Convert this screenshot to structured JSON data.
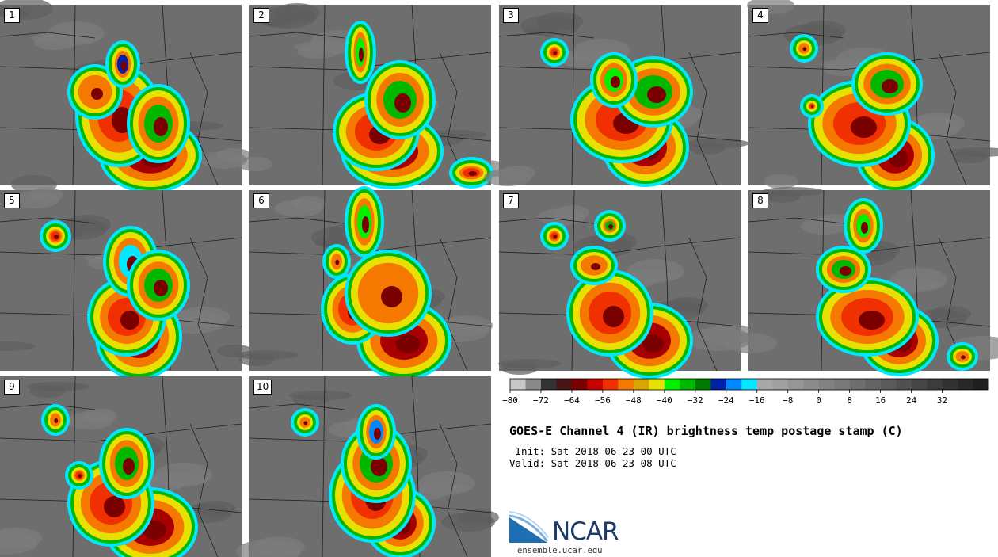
{
  "panels": [
    {
      "label": "1"
    },
    {
      "label": "2"
    },
    {
      "label": "3"
    },
    {
      "label": "4"
    },
    {
      "label": "5"
    },
    {
      "label": "6"
    },
    {
      "label": "7"
    },
    {
      "label": "8"
    },
    {
      "label": "9"
    },
    {
      "label": "10"
    }
  ],
  "colorbar": {
    "colors": [
      "#c8c8c8",
      "#8a8a8a",
      "#333333",
      "#4a1515",
      "#7a0000",
      "#c80000",
      "#f03000",
      "#f57800",
      "#d9a400",
      "#e8e000",
      "#00f000",
      "#00b800",
      "#007a00",
      "#0020a8",
      "#0088ff",
      "#00e8ff",
      "#a8a8a8",
      "#a0a0a0",
      "#969696",
      "#8c8c8c",
      "#828282",
      "#787878",
      "#6e6e6e",
      "#646464",
      "#5a5a5a",
      "#505050",
      "#464646",
      "#3c3c3c",
      "#323232",
      "#282828",
      "#1e1e1e"
    ],
    "tick_labels": [
      "−80",
      "−72",
      "−64",
      "−56",
      "−48",
      "−40",
      "−32",
      "−24",
      "−16",
      "−8",
      "0",
      "8",
      "16",
      "24",
      "32"
    ]
  },
  "title": "GOES-E Channel 4 (IR) brightness temp postage stamp (C)",
  "init_line": " Init: Sat 2018-06-23 00 UTC",
  "valid_line": "Valid: Sat 2018-06-23 08 UTC",
  "logo": {
    "wordmark": "NCAR",
    "url": "ensemble.ucar.edu"
  }
}
